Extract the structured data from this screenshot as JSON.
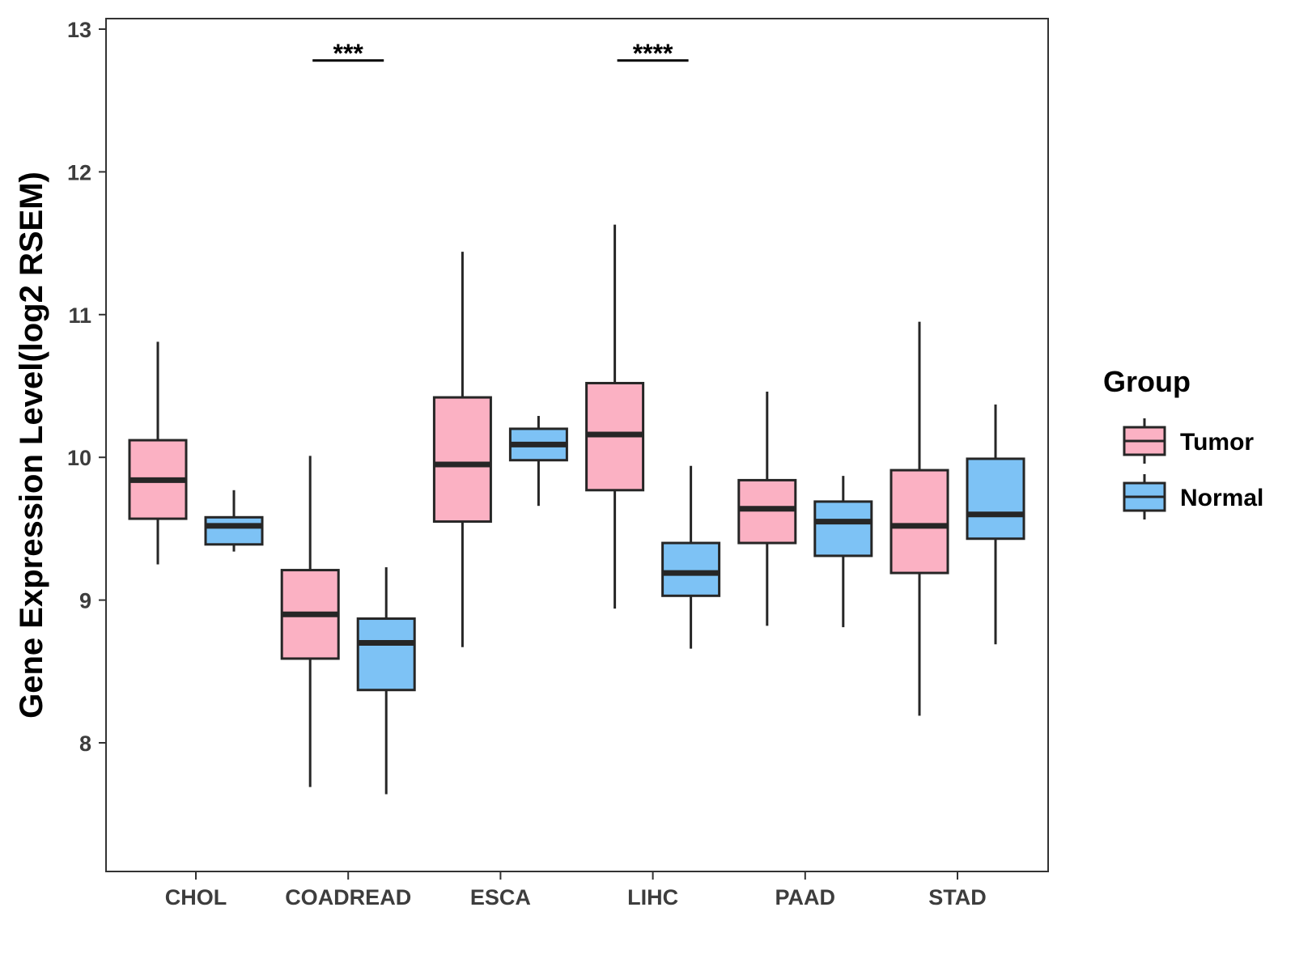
{
  "chart_data": {
    "type": "boxplot",
    "title": "",
    "xlabel": "",
    "ylabel": "Gene Expression Level(log2 RSEM)",
    "ylim": [
      7.1,
      13.1
    ],
    "yticks": [
      8,
      9,
      10,
      11,
      12,
      13
    ],
    "categories": [
      "CHOL",
      "COADREAD",
      "ESCA",
      "LIHC",
      "PAAD",
      "STAD"
    ],
    "legend": {
      "title": "Group",
      "position": "right"
    },
    "series": [
      {
        "name": "Tumor",
        "color": "#fbb1c3",
        "boxes": [
          {
            "min": 9.25,
            "q1": 9.57,
            "median": 9.84,
            "q3": 10.12,
            "max": 10.81
          },
          {
            "min": 7.69,
            "q1": 8.59,
            "median": 8.9,
            "q3": 9.21,
            "max": 10.01
          },
          {
            "min": 8.67,
            "q1": 9.55,
            "median": 9.95,
            "q3": 10.42,
            "max": 11.44
          },
          {
            "min": 8.94,
            "q1": 9.77,
            "median": 10.16,
            "q3": 10.52,
            "max": 11.63
          },
          {
            "min": 8.82,
            "q1": 9.4,
            "median": 9.64,
            "q3": 9.84,
            "max": 10.46
          },
          {
            "min": 8.19,
            "q1": 9.19,
            "median": 9.52,
            "q3": 9.91,
            "max": 10.95
          }
        ]
      },
      {
        "name": "Normal",
        "color": "#7dc2f5",
        "boxes": [
          {
            "min": 9.34,
            "q1": 9.39,
            "median": 9.52,
            "q3": 9.58,
            "max": 9.77
          },
          {
            "min": 7.64,
            "q1": 8.37,
            "median": 8.7,
            "q3": 8.87,
            "max": 9.23
          },
          {
            "min": 9.66,
            "q1": 9.98,
            "median": 10.09,
            "q3": 10.2,
            "max": 10.29
          },
          {
            "min": 8.66,
            "q1": 9.03,
            "median": 9.19,
            "q3": 9.4,
            "max": 9.94
          },
          {
            "min": 8.81,
            "q1": 9.31,
            "median": 9.55,
            "q3": 9.69,
            "max": 9.87
          },
          {
            "min": 8.69,
            "q1": 9.43,
            "median": 9.6,
            "q3": 9.99,
            "max": 10.37
          }
        ]
      }
    ],
    "annotations": [
      {
        "category": "COADREAD",
        "label": "***",
        "y": 12.78
      },
      {
        "category": "LIHC",
        "label": "****",
        "y": 12.78
      }
    ]
  }
}
